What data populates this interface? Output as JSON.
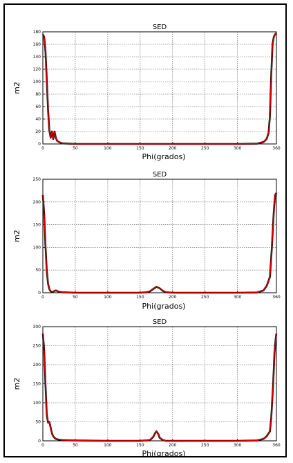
{
  "chart_data": [
    {
      "type": "line",
      "title": "SED",
      "xlabel": "Phi(grados)",
      "ylabel": "m2",
      "xlim": [
        0,
        360
      ],
      "ylim": [
        0,
        180
      ],
      "xticks": [
        0,
        50,
        100,
        150,
        200,
        250,
        300,
        360
      ],
      "yticks": [
        0,
        20,
        40,
        60,
        80,
        100,
        120,
        140,
        160,
        180
      ],
      "grid": true,
      "colors": {
        "series": "#e00000",
        "underlay": "#000000"
      },
      "series": [
        {
          "x": [
            0,
            2,
            4,
            6,
            8,
            10,
            12,
            14,
            16,
            18,
            20,
            22,
            25,
            30,
            40,
            50,
            70,
            100,
            150,
            200,
            250,
            300,
            330,
            340,
            345,
            348,
            350,
            352,
            354,
            356,
            358,
            360
          ],
          "values": [
            176,
            172,
            150,
            105,
            55,
            22,
            10,
            20,
            8,
            20,
            10,
            5,
            3,
            1,
            0.5,
            0,
            0,
            0,
            0,
            0,
            0,
            0,
            0.5,
            3,
            8,
            18,
            45,
            110,
            160,
            172,
            176,
            178
          ]
        }
      ]
    },
    {
      "type": "line",
      "title": "SED",
      "xlabel": "Phi(grados)",
      "ylabel": "m2",
      "xlim": [
        0,
        360
      ],
      "ylim": [
        0,
        250
      ],
      "xticks": [
        0,
        50,
        100,
        150,
        200,
        250,
        300,
        360
      ],
      "yticks": [
        0,
        50,
        100,
        150,
        200,
        250
      ],
      "grid": true,
      "colors": {
        "series": "#e00000",
        "underlay": "#000000"
      },
      "series": [
        {
          "x": [
            0,
            2,
            4,
            6,
            8,
            10,
            12,
            15,
            20,
            25,
            30,
            50,
            100,
            150,
            160,
            165,
            170,
            175,
            180,
            185,
            190,
            200,
            250,
            300,
            330,
            340,
            345,
            350,
            353,
            356,
            358,
            360
          ],
          "values": [
            215,
            175,
            105,
            50,
            20,
            8,
            3,
            2,
            5,
            2,
            1,
            0,
            0,
            0,
            1,
            3,
            8,
            13,
            10,
            4,
            1,
            0,
            0,
            0,
            0.5,
            5,
            15,
            35,
            100,
            180,
            215,
            220
          ]
        }
      ]
    },
    {
      "type": "line",
      "title": "SED",
      "xlabel": "Phi(grados)",
      "ylabel": "m2",
      "xlim": [
        0,
        360
      ],
      "ylim": [
        0,
        300
      ],
      "xticks": [
        0,
        50,
        100,
        150,
        200,
        250,
        300,
        360
      ],
      "yticks": [
        0,
        50,
        100,
        150,
        200,
        250,
        300
      ],
      "grid": true,
      "colors": {
        "series": "#e00000",
        "underlay": "#000000"
      },
      "series": [
        {
          "x": [
            0,
            2,
            4,
            6,
            8,
            10,
            12,
            14,
            16,
            18,
            20,
            25,
            30,
            50,
            100,
            150,
            165,
            170,
            173,
            175,
            178,
            180,
            185,
            190,
            250,
            300,
            330,
            340,
            345,
            350,
            352,
            355,
            357,
            359,
            360
          ],
          "values": [
            282,
            240,
            150,
            70,
            48,
            50,
            35,
            20,
            12,
            8,
            5,
            3,
            2,
            1,
            0,
            0,
            2,
            10,
            20,
            25,
            18,
            8,
            2,
            0,
            0,
            0,
            1,
            5,
            12,
            25,
            60,
            150,
            230,
            270,
            282
          ]
        }
      ]
    }
  ]
}
